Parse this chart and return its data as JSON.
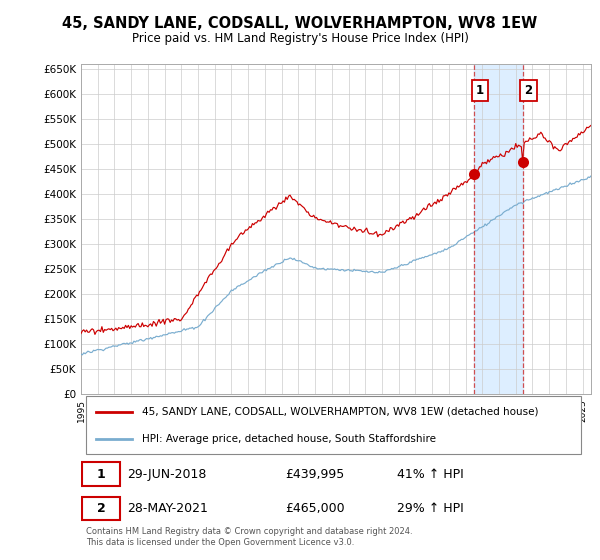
{
  "title": "45, SANDY LANE, CODSALL, WOLVERHAMPTON, WV8 1EW",
  "subtitle": "Price paid vs. HM Land Registry's House Price Index (HPI)",
  "ylabel_ticks": [
    "£0",
    "£50K",
    "£100K",
    "£150K",
    "£200K",
    "£250K",
    "£300K",
    "£350K",
    "£400K",
    "£450K",
    "£500K",
    "£550K",
    "£600K",
    "£650K"
  ],
  "ytick_values": [
    0,
    50000,
    100000,
    150000,
    200000,
    250000,
    300000,
    350000,
    400000,
    450000,
    500000,
    550000,
    600000,
    650000
  ],
  "ylim": [
    0,
    660000
  ],
  "xlim_start": 1995.0,
  "xlim_end": 2025.5,
  "line1_color": "#cc0000",
  "line2_color": "#7aadcf",
  "bg_color": "#ffffff",
  "grid_color": "#cccccc",
  "shade_color": "#ddeeff",
  "legend_label1": "45, SANDY LANE, CODSALL, WOLVERHAMPTON, WV8 1EW (detached house)",
  "legend_label2": "HPI: Average price, detached house, South Staffordshire",
  "marker1_x": 2018.5,
  "marker1_y": 439995,
  "marker2_x": 2021.42,
  "marker2_y": 465000,
  "annotation1_label": "1",
  "annotation2_label": "2",
  "table_row1": [
    "1",
    "29-JUN-2018",
    "£439,995",
    "41% ↑ HPI"
  ],
  "table_row2": [
    "2",
    "28-MAY-2021",
    "£465,000",
    "29% ↑ HPI"
  ],
  "footnote": "Contains HM Land Registry data © Crown copyright and database right 2024.\nThis data is licensed under the Open Government Licence v3.0.",
  "vline1_x": 2018.5,
  "vline2_x": 2021.42
}
